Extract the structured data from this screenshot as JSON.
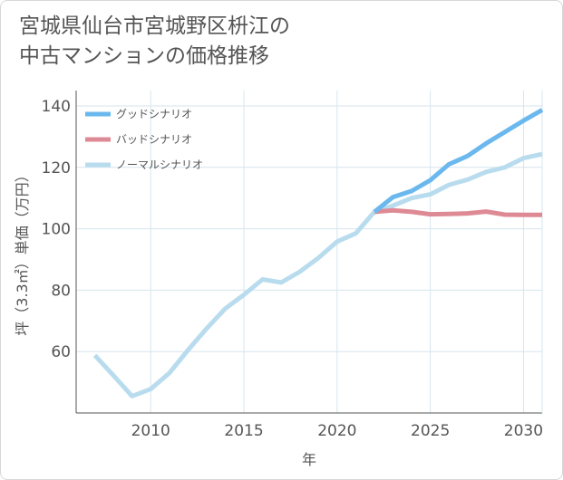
{
  "chart_data": {
    "type": "line",
    "title": "宮城県仙台市宮城野区枡江の\n中古マンションの価格推移",
    "xlabel": "年",
    "ylabel": "坪（3.3㎡）単価（万円）",
    "xlim": [
      2006,
      2031
    ],
    "ylim": [
      40,
      145
    ],
    "xticks": [
      2010,
      2015,
      2020,
      2025,
      2030
    ],
    "yticks": [
      60,
      80,
      100,
      120,
      140
    ],
    "grid": true,
    "legend_position": "top-left",
    "series": [
      {
        "name": "グッドシナリオ",
        "color": "#6ab8ee",
        "x": [
          2022,
          2023,
          2024,
          2025,
          2026,
          2027,
          2028,
          2029,
          2030,
          2031
        ],
        "y": [
          105.5,
          110.3,
          112.3,
          115.8,
          121,
          123.7,
          127.8,
          131.5,
          135.2,
          138.7
        ]
      },
      {
        "name": "バッドシナリオ",
        "color": "#de8a95",
        "x": [
          2022,
          2023,
          2024,
          2025,
          2026,
          2027,
          2028,
          2029,
          2030,
          2031
        ],
        "y": [
          105.5,
          106.0,
          105.5,
          104.7,
          104.8,
          105.0,
          105.6,
          104.6,
          104.5,
          104.5
        ]
      },
      {
        "name": "ノーマルシナリオ",
        "color": "#b8dcee",
        "x": [
          2007,
          2008,
          2009,
          2010,
          2011,
          2012,
          2013,
          2014,
          2015,
          2016,
          2017,
          2018,
          2019,
          2020,
          2021,
          2022,
          2023,
          2024,
          2025,
          2026,
          2027,
          2028,
          2029,
          2030,
          2031
        ],
        "y": [
          58.8,
          52.2,
          45.5,
          47.8,
          53.0,
          60.5,
          67.5,
          74.0,
          78.5,
          83.5,
          82.5,
          86.0,
          90.5,
          95.8,
          98.5,
          105.5,
          107.5,
          110.0,
          111.2,
          114.3,
          116.0,
          118.5,
          120.0,
          123.0,
          124.3
        ]
      }
    ]
  }
}
